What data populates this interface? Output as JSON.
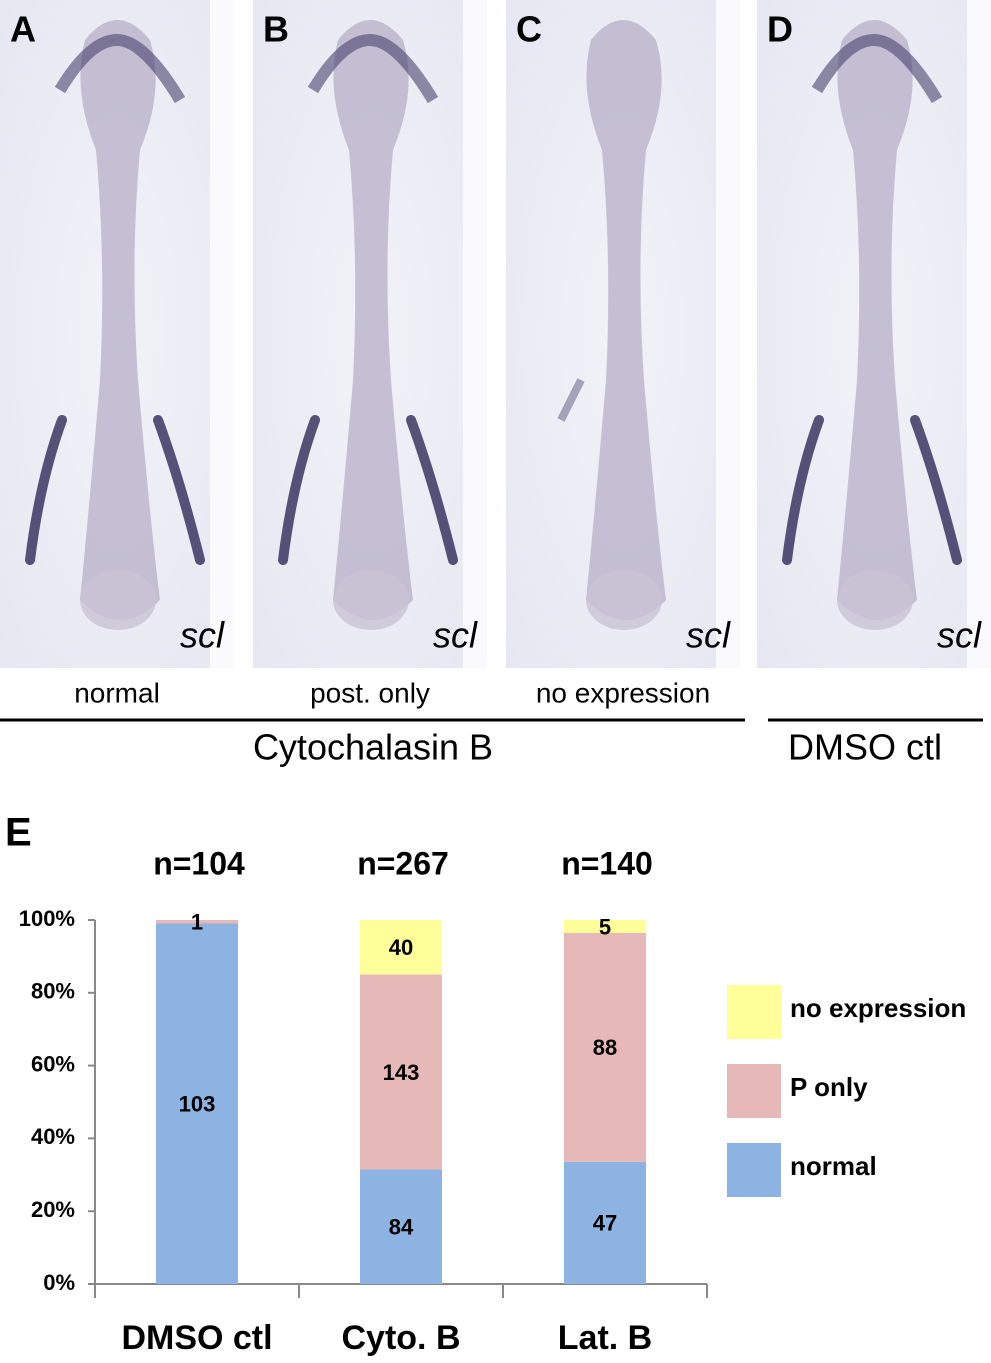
{
  "panels": [
    {
      "letter": "A",
      "marker": "scl",
      "caption": "normal"
    },
    {
      "letter": "B",
      "marker": "scl",
      "caption": "post. only"
    },
    {
      "letter": "C",
      "marker": "scl",
      "caption": "no expression"
    },
    {
      "letter": "D",
      "marker": "scl"
    }
  ],
  "groups": [
    "Cytochalasin B",
    "DMSO ctl"
  ],
  "chart_data": {
    "type": "bar",
    "stacked": "percent",
    "panel_label": "E",
    "annotations": [
      "n=104",
      "n=267",
      "n=140"
    ],
    "categories": [
      "DMSO ctl",
      "Cyto. B",
      "Lat. B"
    ],
    "series": [
      {
        "name": "normal",
        "color": "#8db3e2",
        "values": [
          103,
          84,
          47
        ]
      },
      {
        "name": "P only",
        "color": "#e6b9b8",
        "values": [
          1,
          143,
          88
        ]
      },
      {
        "name": "no expression",
        "color": "#ffff99",
        "values": [
          0,
          40,
          5
        ],
        "value_labels": [
          null,
          "40",
          "5"
        ]
      }
    ],
    "ylim": [
      0,
      100
    ],
    "yticks": [
      {
        "value": 0,
        "label": "0%"
      },
      {
        "value": 20,
        "label": "20%"
      },
      {
        "value": 40,
        "label": "40%"
      },
      {
        "value": 60,
        "label": "60%"
      },
      {
        "value": 80,
        "label": "80%"
      },
      {
        "value": 100,
        "label": "100%"
      }
    ],
    "legend": "right"
  }
}
